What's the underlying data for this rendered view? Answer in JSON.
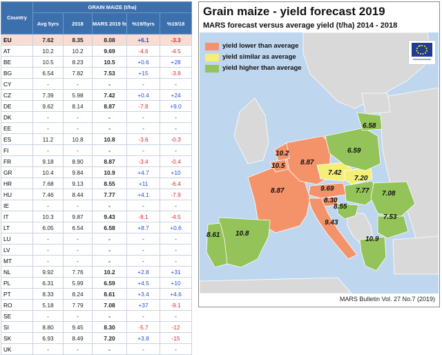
{
  "table": {
    "title": "GRAIN MAIZE (t/ha)",
    "headers": [
      "Country",
      "Avg 5yrs",
      "2018",
      "MARS 2019 forecasts",
      "%19/5yrs",
      "%19/18"
    ],
    "rows": [
      [
        "EU",
        "7.62",
        "8.35",
        "8.08",
        "+6.1",
        "-3.3"
      ],
      [
        "AT",
        "10.2",
        "10.2",
        "9.69",
        "-4.6",
        "-4.5"
      ],
      [
        "BE",
        "10.5",
        "8.23",
        "10.5",
        "+0.6",
        "+28"
      ],
      [
        "BG",
        "6.54",
        "7.82",
        "7.53",
        "+15",
        "-3.8"
      ],
      [
        "CY",
        "-",
        "-",
        "-",
        "-",
        "-"
      ],
      [
        "CZ",
        "7.39",
        "5.98",
        "7.42",
        "+0.4",
        "+24"
      ],
      [
        "DE",
        "9.62",
        "8.14",
        "8.87",
        "-7.8",
        "+9.0"
      ],
      [
        "DK",
        "-",
        "-",
        "-",
        "-",
        "-"
      ],
      [
        "EE",
        "-",
        "-",
        "-",
        "-",
        "-"
      ],
      [
        "ES",
        "11.2",
        "10.8",
        "10.8",
        "-3.6",
        "-0.3"
      ],
      [
        "FI",
        "-",
        "-",
        "-",
        "-",
        "-"
      ],
      [
        "FR",
        "9.18",
        "8.90",
        "8.87",
        "-3.4",
        "-0.4"
      ],
      [
        "GR",
        "10.4",
        "9.84",
        "10.9",
        "+4.7",
        "+10"
      ],
      [
        "HR",
        "7.68",
        "9.13",
        "8.55",
        "+11",
        "-6.4"
      ],
      [
        "HU",
        "7.46",
        "8.44",
        "7.77",
        "+4.1",
        "-7.9"
      ],
      [
        "IE",
        "-",
        "-",
        "-",
        "-",
        "-"
      ],
      [
        "IT",
        "10.3",
        "9.87",
        "9.43",
        "-8.1",
        "-4.5"
      ],
      [
        "LT",
        "6.05",
        "6.54",
        "6.58",
        "+8.7",
        "+0.6"
      ],
      [
        "LU",
        "-",
        "-",
        "-",
        "-",
        "-"
      ],
      [
        "LV",
        "-",
        "-",
        "-",
        "-",
        "-"
      ],
      [
        "MT",
        "-",
        "-",
        "-",
        "-",
        "-"
      ],
      [
        "NL",
        "9.92",
        "7.76",
        "10.2",
        "+2.8",
        "+31"
      ],
      [
        "PL",
        "6.31",
        "5.99",
        "6.59",
        "+4.5",
        "+10"
      ],
      [
        "PT",
        "8.33",
        "8.24",
        "8.61",
        "+3.4",
        "+4.6"
      ],
      [
        "RO",
        "5.18",
        "7.79",
        "7.08",
        "+37",
        "-9.1"
      ],
      [
        "SE",
        "-",
        "-",
        "-",
        "-",
        "-"
      ],
      [
        "SI",
        "8.80",
        "9.45",
        "8.30",
        "-5.7",
        "-12"
      ],
      [
        "SK",
        "6.93",
        "8.49",
        "7.20",
        "+3.8",
        "-15"
      ],
      [
        "UK",
        "-",
        "-",
        "-",
        "-",
        "-"
      ]
    ]
  },
  "map": {
    "title": "Grain maize - yield forecast 2019",
    "subtitle": "MARS forecast versus average yield (t/ha) 2014 - 2018",
    "legend": [
      {
        "label": "yield lower than average",
        "color": "#f4936a"
      },
      {
        "label": "yield similar as average",
        "color": "#f5ef7a"
      },
      {
        "label": "yield higher than average",
        "color": "#94c35a"
      }
    ],
    "labels": [
      {
        "id": "LT",
        "text": "6.58"
      },
      {
        "id": "PL",
        "text": "6.59"
      },
      {
        "id": "NL",
        "text": "10.2"
      },
      {
        "id": "DE",
        "text": "8.87"
      },
      {
        "id": "BE",
        "text": "10.5"
      },
      {
        "id": "CZ",
        "text": "7.42"
      },
      {
        "id": "SK",
        "text": "7.20"
      },
      {
        "id": "FR",
        "text": "8.87"
      },
      {
        "id": "AT",
        "text": "9.69"
      },
      {
        "id": "HU",
        "text": "7.77"
      },
      {
        "id": "RO",
        "text": "7.08"
      },
      {
        "id": "SI",
        "text": "8.30"
      },
      {
        "id": "HR",
        "text": "8.55"
      },
      {
        "id": "BG",
        "text": "7.53"
      },
      {
        "id": "IT",
        "text": "9.43"
      },
      {
        "id": "ES",
        "text": "10.8"
      },
      {
        "id": "PT",
        "text": "8.61"
      },
      {
        "id": "GR",
        "text": "10.9"
      }
    ],
    "footer": "MARS Bulletin Vol. 27 No.7 (2019)",
    "colors": {
      "sea": "#bed6ee",
      "neutral_land": "#d9d9d9",
      "lower": "#f4936a",
      "similar": "#f5ef7a",
      "higher": "#94c35a",
      "header_blue": "#3c70ad",
      "eu_row": "#f9dcd2",
      "positive_text": "#1f4fd6",
      "negative_text": "#d72a2a"
    },
    "logo_icon": "eu-flag-icon"
  }
}
